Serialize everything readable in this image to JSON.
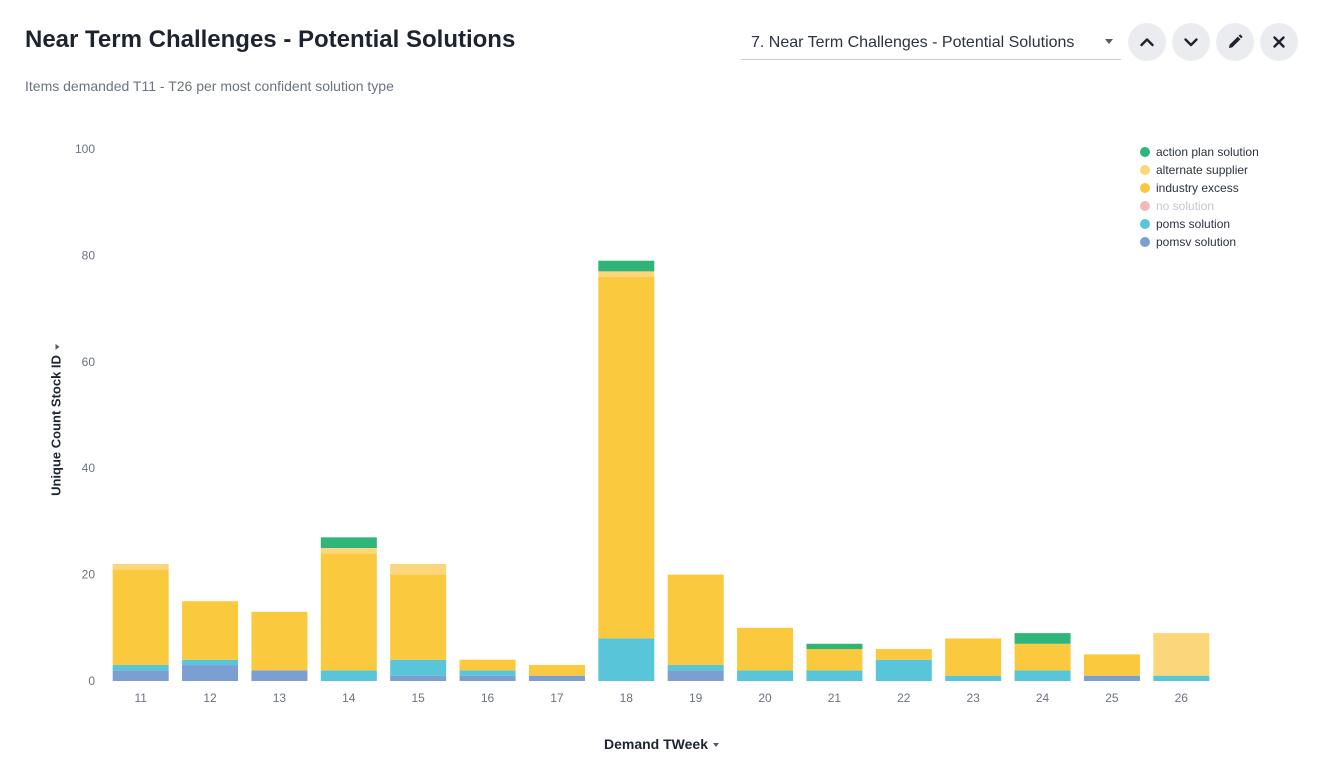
{
  "header": {
    "title": "Near Term Challenges - Potential Solutions",
    "subtitle": "Items demanded T11 - T26 per most confident solution type",
    "selector_value": "7. Near Term Challenges - Potential Solutions"
  },
  "toolbar": {
    "up_icon": "chevron-up-icon",
    "down_icon": "chevron-down-icon",
    "edit_icon": "pencil-icon",
    "close_icon": "close-icon"
  },
  "chart_data": {
    "type": "bar",
    "stacked": true,
    "xlabel": "Demand TWeek",
    "ylabel": "Unique Count Stock ID",
    "ylim": [
      0,
      100
    ],
    "yticks": [
      0,
      20,
      40,
      60,
      80,
      100
    ],
    "grid": false,
    "legend_position": "top-right",
    "categories": [
      "11",
      "12",
      "13",
      "14",
      "15",
      "16",
      "17",
      "18",
      "19",
      "20",
      "21",
      "22",
      "23",
      "24",
      "25",
      "26"
    ],
    "series": [
      {
        "name": "pomsv solution",
        "color": "#7b9fd3",
        "values": [
          2,
          3,
          2,
          0,
          1,
          1,
          1,
          0,
          2,
          0,
          0,
          0,
          0,
          0,
          1,
          0
        ]
      },
      {
        "name": "poms solution",
        "color": "#58c6d8",
        "values": [
          1,
          1,
          0,
          2,
          3,
          1,
          0,
          8,
          1,
          2,
          2,
          4,
          1,
          2,
          0,
          1
        ]
      },
      {
        "name": "no solution",
        "color": "#f2b8be",
        "values": [
          0,
          0,
          0,
          0,
          0,
          0,
          0,
          0,
          0,
          0,
          0,
          0,
          0,
          0,
          0,
          0
        ],
        "muted": true
      },
      {
        "name": "industry excess",
        "color": "#fbc93d",
        "values": [
          18,
          11,
          11,
          22,
          16,
          2,
          2,
          68,
          17,
          8,
          4,
          2,
          7,
          5,
          4,
          0
        ]
      },
      {
        "name": "alternate supplier",
        "color": "#fcd67a",
        "values": [
          1,
          0,
          0,
          1,
          2,
          0,
          0,
          1,
          0,
          0,
          0,
          0,
          0,
          0,
          0,
          8
        ]
      },
      {
        "name": "action plan solution",
        "color": "#2fb57a",
        "values": [
          0,
          0,
          0,
          2,
          0,
          0,
          0,
          2,
          0,
          0,
          1,
          0,
          0,
          2,
          0,
          0
        ]
      }
    ],
    "legend_order": [
      "action plan solution",
      "alternate supplier",
      "industry excess",
      "no solution",
      "poms solution",
      "pomsv solution"
    ]
  }
}
